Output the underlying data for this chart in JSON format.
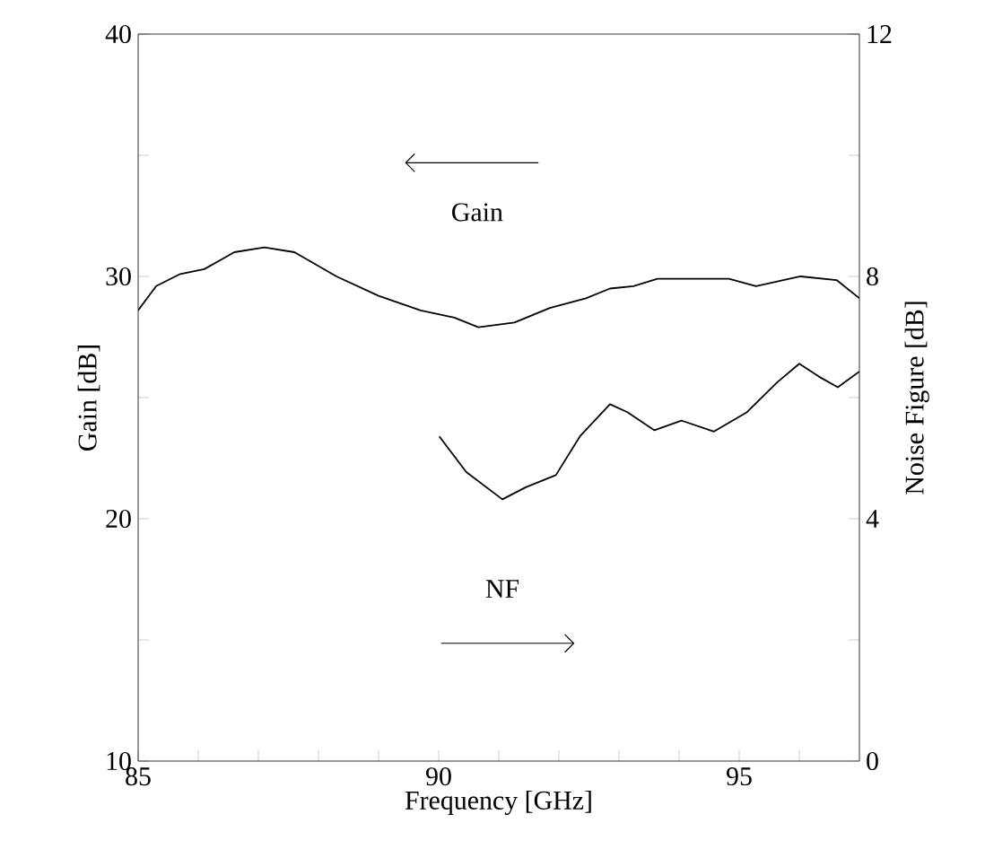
{
  "chart_data": {
    "type": "line",
    "xlabel": "Frequency [GHz]",
    "ylabel": "Gain [dB]",
    "y2label": "Noise Figure [dB]",
    "xlim": [
      85,
      97
    ],
    "ylim": [
      10,
      40
    ],
    "y2lim": [
      0,
      12
    ],
    "xticks": [
      85,
      {
        "value": 86,
        "label": null
      },
      {
        "value": 87,
        "label": null
      },
      {
        "value": 88,
        "label": null
      },
      {
        "value": 89,
        "label": null
      },
      90,
      {
        "value": 91,
        "label": null
      },
      {
        "value": 92,
        "label": null
      },
      {
        "value": 93,
        "label": null
      },
      {
        "value": 94,
        "label": null
      },
      95,
      {
        "value": 96,
        "label": null
      }
    ],
    "yticks": [
      10,
      {
        "value": 15,
        "label": null
      },
      20,
      {
        "value": 25,
        "label": null
      },
      30,
      {
        "value": 35,
        "label": null
      },
      40
    ],
    "y2ticks": [
      0,
      {
        "value": 2,
        "label": null
      },
      4,
      {
        "value": 6,
        "label": null
      },
      8,
      {
        "value": 10,
        "label": null
      },
      12
    ],
    "annotations": [
      "Gain",
      "NF"
    ],
    "grid": false,
    "legend": false,
    "marker": "none",
    "line_style": "solid",
    "series": [
      {
        "color": "#000000",
        "x": [
          85,
          85.3,
          85.7,
          86.1,
          86.6,
          87.1,
          87.6,
          88.3,
          89.0,
          89.7,
          90.26,
          90.66,
          91.26,
          91.85,
          92.45,
          92.85,
          93.24,
          93.64,
          94.04,
          94.83,
          95.28,
          96.02,
          96.62,
          97
        ],
        "values": [
          28.6,
          29.6,
          30.1,
          30.3,
          31.0,
          31.2,
          31.0,
          30.0,
          29.2,
          28.6,
          28.3,
          27.9,
          28.1,
          28.7,
          29.1,
          29.5,
          29.6,
          29.9,
          29.9,
          29.9,
          29.6,
          30.0,
          29.85,
          29.1
        ]
      },
      {
        "color": "#000000",
        "axis": "y2",
        "x": [
          90.01,
          90.46,
          91.06,
          91.45,
          91.95,
          92.35,
          92.85,
          93.14,
          93.59,
          94.04,
          94.58,
          95.13,
          95.63,
          96.0,
          96.32,
          96.64,
          97
        ],
        "values": [
          5.36,
          4.77,
          4.32,
          4.52,
          4.72,
          5.36,
          5.89,
          5.76,
          5.46,
          5.62,
          5.44,
          5.76,
          6.25,
          6.56,
          6.35,
          6.17,
          6.43
        ]
      }
    ]
  }
}
